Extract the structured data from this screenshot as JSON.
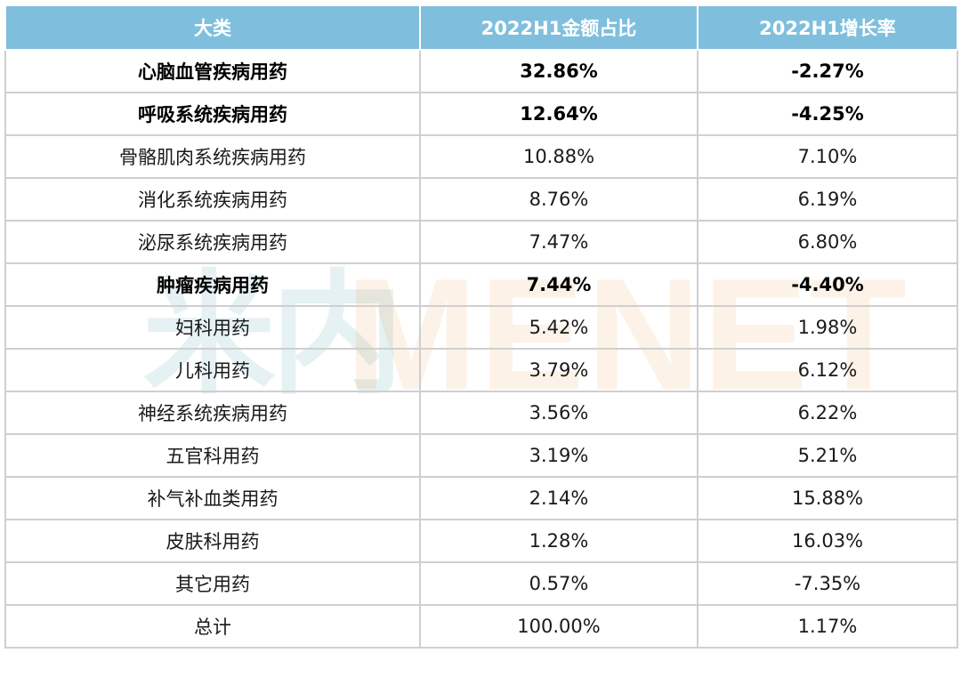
{
  "watermark": {
    "cn": "米内",
    "en": "MENET"
  },
  "chart_data": {
    "type": "table",
    "columns": [
      "大类",
      "2022H1金额占比",
      "2022H1增长率"
    ],
    "rows": [
      {
        "category": "心脑血管疾病用药",
        "share": "32.86%",
        "growth": "-2.27%",
        "bold": true
      },
      {
        "category": "呼吸系统疾病用药",
        "share": "12.64%",
        "growth": "-4.25%",
        "bold": true
      },
      {
        "category": "骨骼肌肉系统疾病用药",
        "share": "10.88%",
        "growth": "7.10%",
        "bold": false
      },
      {
        "category": "消化系统疾病用药",
        "share": "8.76%",
        "growth": "6.19%",
        "bold": false
      },
      {
        "category": "泌尿系统疾病用药",
        "share": "7.47%",
        "growth": "6.80%",
        "bold": false
      },
      {
        "category": "肿瘤疾病用药",
        "share": "7.44%",
        "growth": "-4.40%",
        "bold": true
      },
      {
        "category": "妇科用药",
        "share": "5.42%",
        "growth": "1.98%",
        "bold": false
      },
      {
        "category": "儿科用药",
        "share": "3.79%",
        "growth": "6.12%",
        "bold": false
      },
      {
        "category": "神经系统疾病用药",
        "share": "3.56%",
        "growth": "6.22%",
        "bold": false
      },
      {
        "category": "五官科用药",
        "share": "3.19%",
        "growth": "5.21%",
        "bold": false
      },
      {
        "category": "补气补血类用药",
        "share": "2.14%",
        "growth": "15.88%",
        "bold": false
      },
      {
        "category": "皮肤科用药",
        "share": "1.28%",
        "growth": "16.03%",
        "bold": false
      },
      {
        "category": "其它用药",
        "share": "0.57%",
        "growth": "-7.35%",
        "bold": false
      },
      {
        "category": "总计",
        "share": "100.00%",
        "growth": "1.17%",
        "bold": false
      }
    ],
    "colors": {
      "header_bg": "#7fbfdd",
      "header_text": "#ffffff",
      "border": "#cfcfcf"
    }
  }
}
